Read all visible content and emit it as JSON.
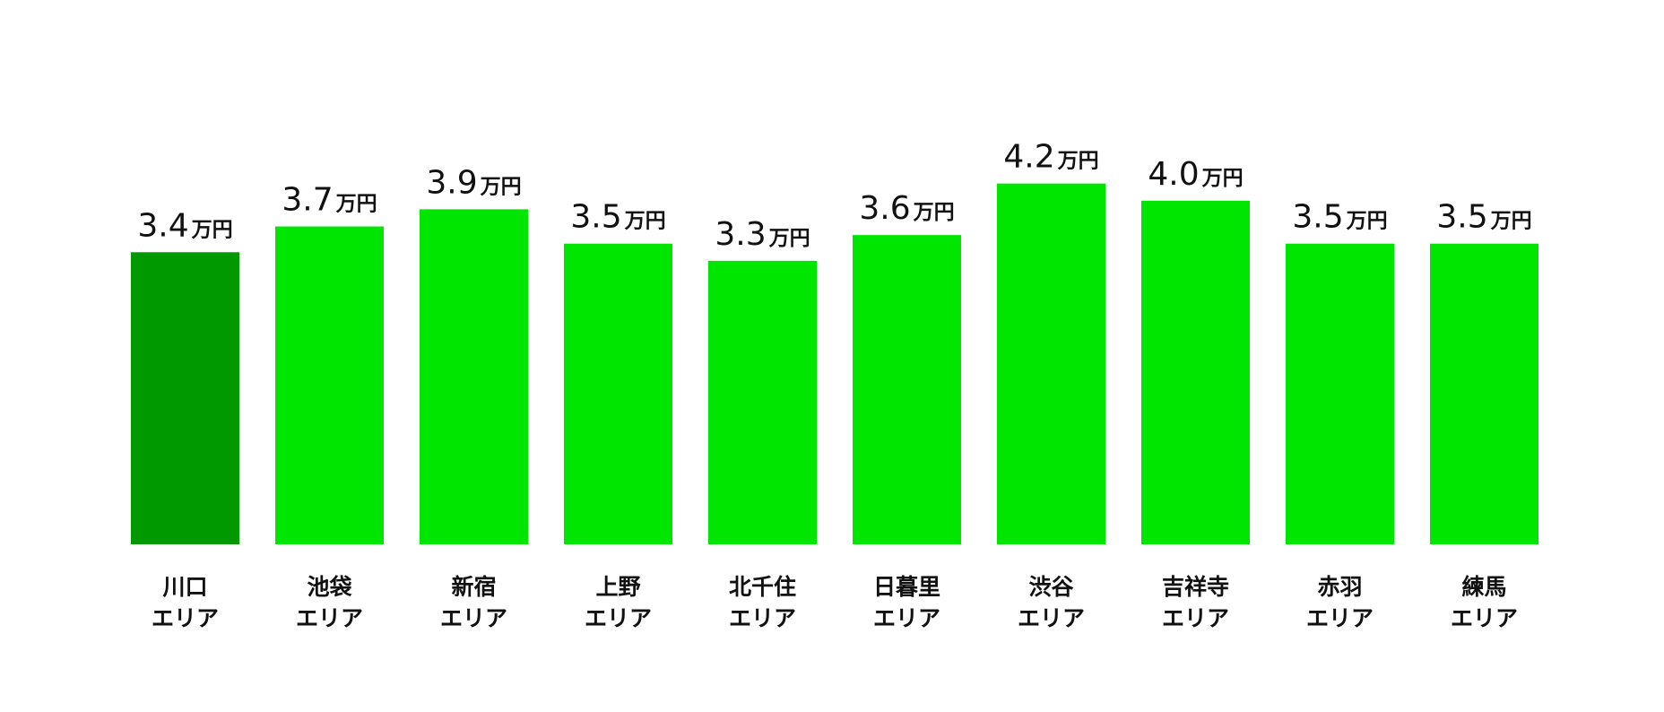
{
  "chart_data": {
    "type": "bar",
    "categories": [
      "川口\nエリア",
      "池袋\nエリア",
      "新宿\nエリア",
      "上野\nエリア",
      "北千住\nエリア",
      "日暮里\nエリア",
      "渋谷\nエリア",
      "吉祥寺\nエリア",
      "赤羽\nエリア",
      "練馬\nエリア"
    ],
    "values": [
      3.4,
      3.7,
      3.9,
      3.5,
      3.3,
      3.6,
      4.2,
      4.0,
      3.5,
      3.5
    ],
    "value_labels": [
      "3.4万円",
      "3.7万円",
      "3.9万円",
      "3.5万円",
      "3.3万円",
      "3.6万円",
      "4.2万円",
      "4.0万円",
      "3.5万円",
      "3.5万円"
    ],
    "colors": [
      "#009a00",
      "#00e600",
      "#00e600",
      "#00e600",
      "#00e600",
      "#00e600",
      "#00e600",
      "#00e600",
      "#00e600",
      "#00e600"
    ],
    "ylim": [
      0,
      5
    ]
  }
}
